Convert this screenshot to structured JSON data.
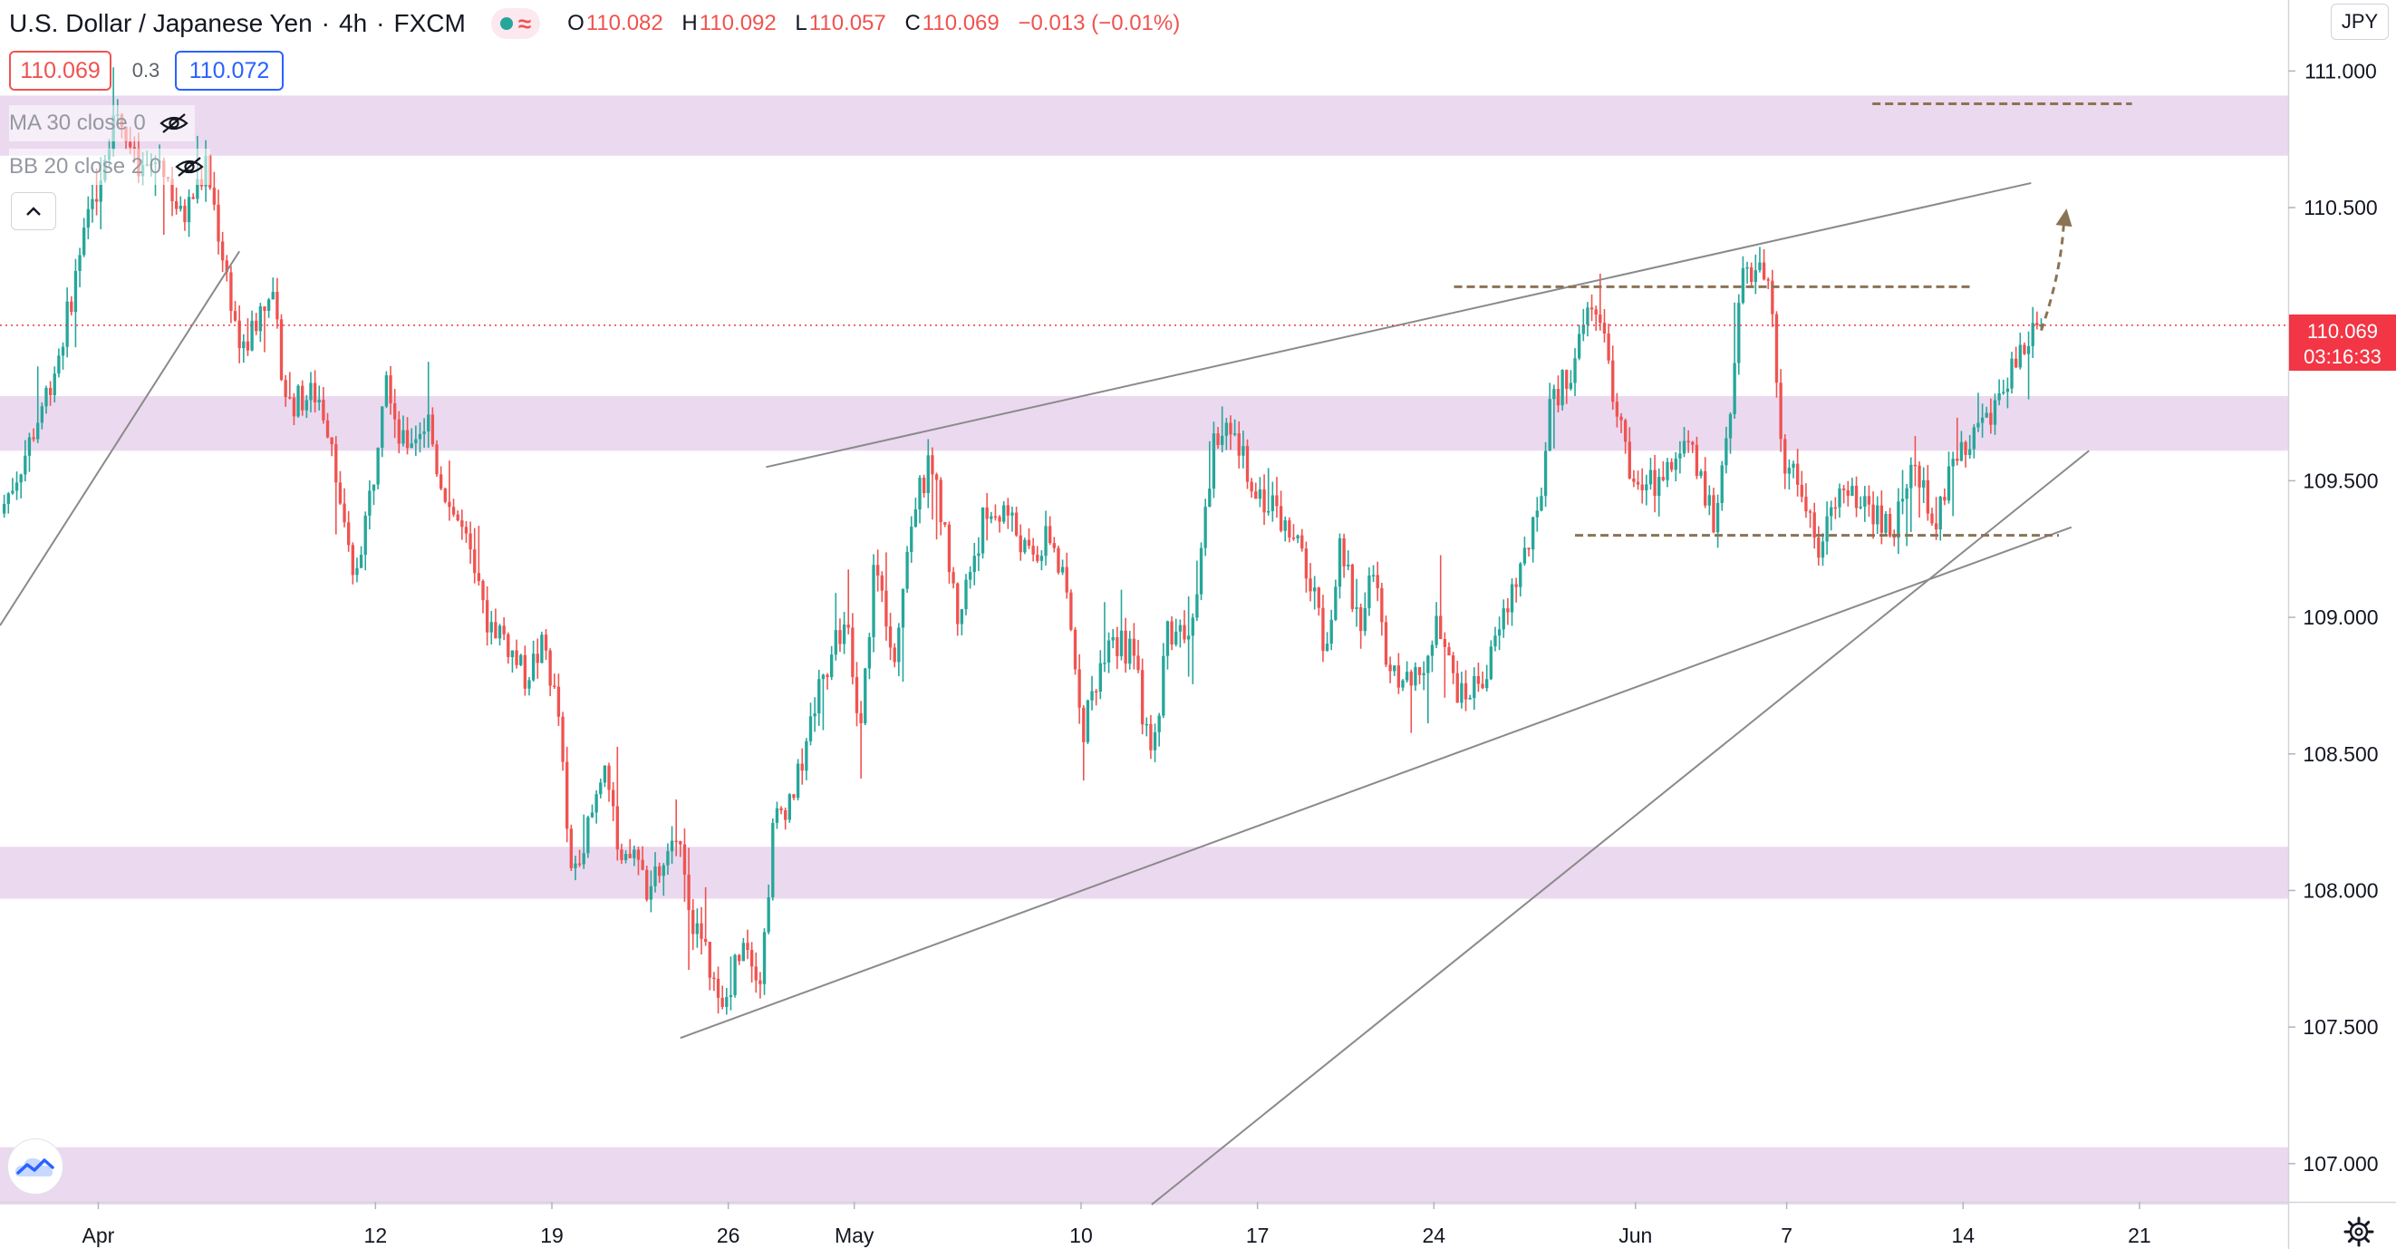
{
  "header": {
    "symbol": "U.S. Dollar / Japanese Yen",
    "interval": "4h",
    "exchange": "FXCM",
    "ohlc": {
      "open_label": "O",
      "open": "110.082",
      "high_label": "H",
      "high": "110.092",
      "low_label": "L",
      "low": "110.057",
      "close_label": "C",
      "close": "110.069",
      "change": "−0.013 (−0.01%)"
    }
  },
  "quote": {
    "bid": "110.069",
    "spread": "0.3",
    "ask": "110.072"
  },
  "indicators": [
    {
      "label": "MA 30 close 0",
      "icon": "eye-off-icon"
    },
    {
      "label": "BB 20 close 2 0",
      "icon": "eye-off-icon"
    }
  ],
  "currency_button": "JPY",
  "last_price_label": {
    "price": "110.069",
    "countdown": "03:16:33"
  },
  "colors": {
    "up": "#26a69a",
    "down": "#ef5350",
    "zone": "#e8d2ec",
    "trendline": "#8a8a8a",
    "level": "#8b7355",
    "last_price": "#f23645"
  },
  "chart_data": {
    "type": "candlestick",
    "y_axis": {
      "ticks": [
        "111.000",
        "110.500",
        "109.500",
        "109.000",
        "108.500",
        "108.000",
        "107.500",
        "107.000"
      ],
      "ylim": [
        106.86,
        111.26
      ]
    },
    "x_axis": {
      "ticks": [
        {
          "label": "Apr",
          "day": 0
        },
        {
          "label": "12",
          "day": 11
        },
        {
          "label": "19",
          "day": 18
        },
        {
          "label": "26",
          "day": 25
        },
        {
          "label": "May",
          "day": 30
        },
        {
          "label": "10",
          "day": 39
        },
        {
          "label": "17",
          "day": 46
        },
        {
          "label": "24",
          "day": 53
        },
        {
          "label": "Jun",
          "day": 61
        },
        {
          "label": "7",
          "day": 67
        },
        {
          "label": "14",
          "day": 74
        },
        {
          "label": "21",
          "day": 81
        }
      ],
      "xlim": [
        -3.9,
        86.9
      ]
    },
    "anchors": [
      [
        -3.9,
        109.38
      ],
      [
        -2.8,
        109.62
      ],
      [
        -1.6,
        109.95
      ],
      [
        -0.7,
        110.33
      ],
      [
        0.3,
        110.72
      ],
      [
        0.7,
        110.88
      ],
      [
        1.6,
        110.62
      ],
      [
        2.5,
        110.68
      ],
      [
        3.3,
        110.45
      ],
      [
        4.3,
        110.65
      ],
      [
        5.2,
        110.2
      ],
      [
        5.7,
        109.95
      ],
      [
        6.8,
        110.22
      ],
      [
        7.5,
        109.78
      ],
      [
        8.7,
        109.82
      ],
      [
        9.3,
        109.65
      ],
      [
        9.7,
        109.35
      ],
      [
        10.1,
        109.12
      ],
      [
        10.9,
        109.5
      ],
      [
        11.4,
        109.95
      ],
      [
        12.0,
        109.62
      ],
      [
        13.1,
        109.72
      ],
      [
        13.5,
        109.52
      ],
      [
        14.5,
        109.3
      ],
      [
        15.3,
        109.0
      ],
      [
        16.0,
        108.95
      ],
      [
        16.9,
        108.78
      ],
      [
        17.7,
        108.9
      ],
      [
        18.3,
        108.62
      ],
      [
        18.7,
        108.05
      ],
      [
        19.6,
        108.28
      ],
      [
        20.1,
        108.5
      ],
      [
        20.7,
        108.05
      ],
      [
        21.3,
        108.15
      ],
      [
        21.8,
        108.0
      ],
      [
        22.6,
        108.1
      ],
      [
        23.1,
        108.22
      ],
      [
        23.5,
        107.92
      ],
      [
        24.3,
        107.72
      ],
      [
        24.7,
        107.52
      ],
      [
        25.6,
        107.85
      ],
      [
        26.3,
        107.68
      ],
      [
        26.8,
        108.25
      ],
      [
        27.7,
        108.38
      ],
      [
        28.6,
        108.75
      ],
      [
        29.7,
        109.0
      ],
      [
        30.2,
        108.52
      ],
      [
        30.8,
        109.2
      ],
      [
        31.6,
        108.88
      ],
      [
        32.3,
        109.38
      ],
      [
        33.1,
        109.58
      ],
      [
        34.1,
        109.0
      ],
      [
        35.1,
        109.35
      ],
      [
        36.0,
        109.4
      ],
      [
        37.0,
        109.2
      ],
      [
        37.8,
        109.3
      ],
      [
        38.4,
        109.08
      ],
      [
        39.1,
        108.6
      ],
      [
        40.1,
        108.95
      ],
      [
        41.1,
        108.85
      ],
      [
        41.8,
        108.45
      ],
      [
        42.4,
        108.95
      ],
      [
        43.5,
        108.98
      ],
      [
        44.3,
        109.7
      ],
      [
        45.2,
        109.62
      ],
      [
        46.1,
        109.45
      ],
      [
        46.9,
        109.35
      ],
      [
        47.8,
        109.22
      ],
      [
        48.7,
        108.9
      ],
      [
        49.3,
        109.25
      ],
      [
        50.1,
        108.95
      ],
      [
        50.6,
        109.2
      ],
      [
        51.0,
        108.9
      ],
      [
        52.1,
        108.72
      ],
      [
        53.1,
        108.95
      ],
      [
        54.1,
        108.7
      ],
      [
        55.1,
        108.8
      ],
      [
        56.1,
        109.1
      ],
      [
        57.1,
        109.35
      ],
      [
        57.6,
        109.75
      ],
      [
        58.6,
        109.95
      ],
      [
        59.5,
        110.18
      ],
      [
        60.1,
        109.8
      ],
      [
        61.1,
        109.45
      ],
      [
        62.1,
        109.52
      ],
      [
        63.1,
        109.62
      ],
      [
        64.1,
        109.35
      ],
      [
        64.6,
        109.65
      ],
      [
        65.3,
        110.28
      ],
      [
        66.3,
        110.22
      ],
      [
        66.8,
        109.6
      ],
      [
        67.6,
        109.48
      ],
      [
        68.3,
        109.25
      ],
      [
        69.2,
        109.45
      ],
      [
        70.2,
        109.42
      ],
      [
        71.2,
        109.3
      ],
      [
        71.9,
        109.55
      ],
      [
        72.9,
        109.35
      ],
      [
        73.8,
        109.6
      ],
      [
        74.3,
        109.68
      ],
      [
        75.1,
        109.72
      ],
      [
        75.8,
        109.9
      ],
      [
        76.7,
        110.05
      ],
      [
        77.1,
        110.07
      ]
    ],
    "last_price": 110.069,
    "zones": [
      {
        "from": 110.69,
        "to": 110.91
      },
      {
        "from": 109.61,
        "to": 109.81
      },
      {
        "from": 107.97,
        "to": 108.16
      },
      {
        "from": 106.85,
        "to": 107.06
      }
    ],
    "trendlines": [
      {
        "from": [
          41.8,
          106.85
        ],
        "to": [
          79.0,
          109.61
        ]
      },
      {
        "from": [
          23.1,
          107.46
        ],
        "to": [
          78.3,
          109.33
        ]
      },
      {
        "from": [
          26.5,
          109.55
        ],
        "to": [
          76.7,
          110.59
        ]
      },
      {
        "from": [
          -3.9,
          108.97
        ],
        "to": [
          5.6,
          110.34
        ]
      }
    ],
    "levels": [
      {
        "from": 70.4,
        "to": 80.7,
        "y": 110.88
      },
      {
        "from": 53.8,
        "to": 74.3,
        "y": 110.21
      },
      {
        "from": 58.6,
        "to": 77.8,
        "y": 109.3
      }
    ],
    "projection_arrow": {
      "from": [
        77.1,
        110.05
      ],
      "to": [
        78.0,
        110.47
      ]
    }
  }
}
